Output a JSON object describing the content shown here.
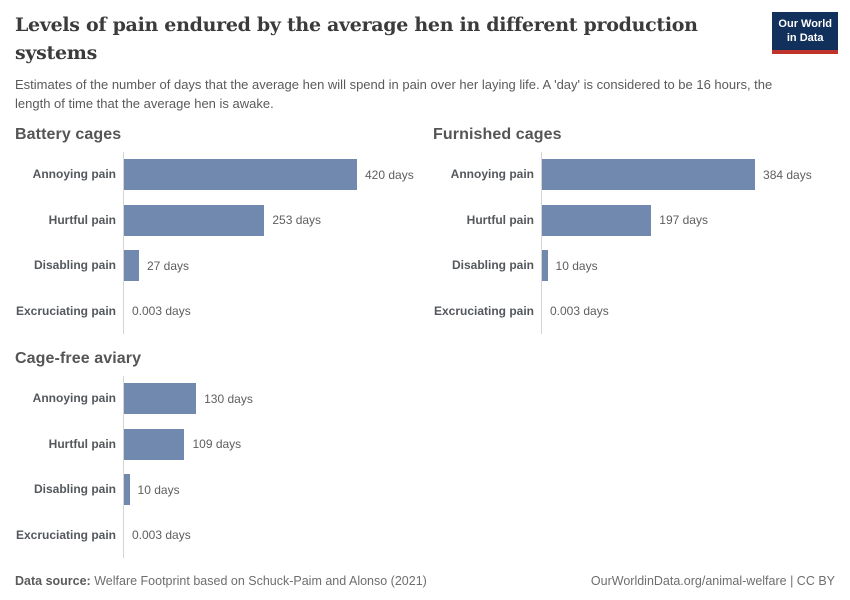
{
  "header": {
    "title": "Levels of pain endured by the average hen in different production systems",
    "subtitle": "Estimates of the number of days that the average hen will spend in pain over her laying life. A 'day' is considered to be 16 hours, the length of time that the average hen is awake.",
    "logo": {
      "line1": "Our World",
      "line2": "in Data"
    }
  },
  "chart_data": [
    {
      "type": "bar",
      "orientation": "horizontal",
      "title": "Battery cages",
      "categories": [
        "Annoying pain",
        "Hurtful pain",
        "Disabling pain",
        "Excruciating pain"
      ],
      "values": [
        420,
        253,
        27,
        0.003
      ],
      "value_labels": [
        "420 days",
        "253 days",
        "27 days",
        "0.003 days"
      ],
      "unit": "days",
      "xlim": [
        0,
        420
      ],
      "grid": false,
      "legend": false
    },
    {
      "type": "bar",
      "orientation": "horizontal",
      "title": "Furnished cages",
      "categories": [
        "Annoying pain",
        "Hurtful pain",
        "Disabling pain",
        "Excruciating pain"
      ],
      "values": [
        384,
        197,
        10,
        0.003
      ],
      "value_labels": [
        "384 days",
        "197 days",
        "10 days",
        "0.003 days"
      ],
      "unit": "days",
      "xlim": [
        0,
        420
      ],
      "grid": false,
      "legend": false
    },
    {
      "type": "bar",
      "orientation": "horizontal",
      "title": "Cage-free aviary",
      "categories": [
        "Annoying pain",
        "Hurtful pain",
        "Disabling pain",
        "Excruciating pain"
      ],
      "values": [
        130,
        109,
        10,
        0.003
      ],
      "value_labels": [
        "130 days",
        "109 days",
        "10 days",
        "0.003 days"
      ],
      "unit": "days",
      "xlim": [
        0,
        420
      ],
      "grid": false,
      "legend": false
    }
  ],
  "colors": {
    "bar": "#7189ae",
    "axis": "#d4d4d4",
    "logo_background": "#12305c",
    "logo_underline": "#c0332d"
  },
  "footer": {
    "source_label": "Data source:",
    "source_text": "Welfare Footprint based on Schuck-Paim and Alonso (2021)",
    "link_text": "OurWorldinData.org/animal-welfare | CC BY"
  }
}
